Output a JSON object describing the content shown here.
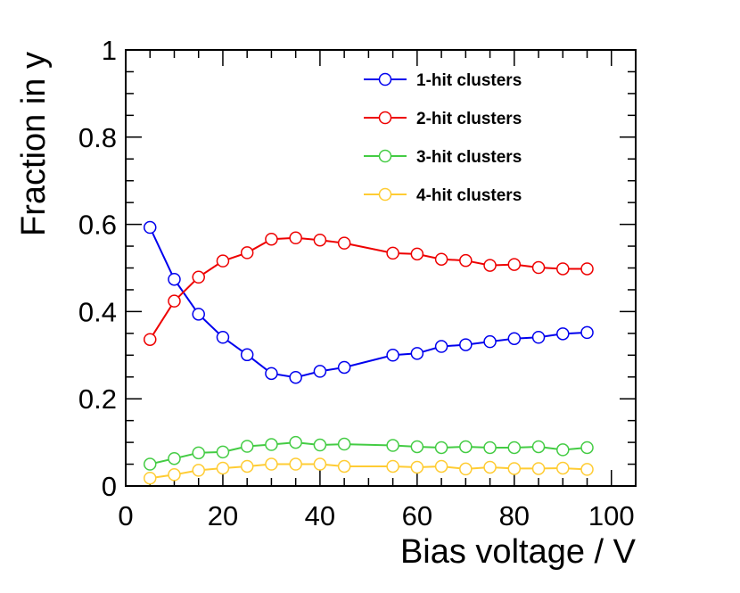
{
  "chart_data": {
    "type": "line",
    "title": "",
    "xlabel": "Bias voltage / V",
    "ylabel": "Fraction in y",
    "xlim": [
      0,
      105
    ],
    "ylim": [
      0,
      1
    ],
    "x_ticks": [
      0,
      20,
      40,
      60,
      80,
      100
    ],
    "y_ticks": [
      0,
      0.2,
      0.4,
      0.6,
      0.8,
      1
    ],
    "x_tick_labels": [
      "0",
      "20",
      "40",
      "60",
      "80",
      "100"
    ],
    "y_tick_labels": [
      "0",
      "0.2",
      "0.4",
      "0.6",
      "0.8",
      "1"
    ],
    "legend_position": "top-right",
    "series": [
      {
        "name": "1-hit clusters",
        "color": "#0000ee",
        "x": [
          5,
          10,
          15,
          20,
          25,
          30,
          35,
          40,
          45,
          55,
          60,
          65,
          70,
          75,
          80,
          85,
          90,
          95
        ],
        "values": [
          0.593,
          0.474,
          0.394,
          0.341,
          0.301,
          0.258,
          0.249,
          0.263,
          0.272,
          0.3,
          0.304,
          0.32,
          0.324,
          0.331,
          0.338,
          0.341,
          0.349,
          0.352
        ]
      },
      {
        "name": "2-hit clusters",
        "color": "#ee0000",
        "x": [
          5,
          10,
          15,
          20,
          25,
          30,
          35,
          40,
          45,
          55,
          60,
          65,
          70,
          75,
          80,
          85,
          90,
          95
        ],
        "values": [
          0.336,
          0.424,
          0.479,
          0.516,
          0.535,
          0.566,
          0.569,
          0.564,
          0.557,
          0.534,
          0.532,
          0.52,
          0.517,
          0.506,
          0.508,
          0.501,
          0.498,
          0.498
        ]
      },
      {
        "name": "3-hit clusters",
        "color": "#44cc44",
        "x": [
          5,
          10,
          15,
          20,
          25,
          30,
          35,
          40,
          45,
          55,
          60,
          65,
          70,
          75,
          80,
          85,
          90,
          95
        ],
        "values": [
          0.05,
          0.063,
          0.076,
          0.078,
          0.091,
          0.095,
          0.1,
          0.094,
          0.096,
          0.093,
          0.09,
          0.088,
          0.09,
          0.088,
          0.088,
          0.09,
          0.083,
          0.088
        ]
      },
      {
        "name": "4-hit clusters",
        "color": "#ffcc33",
        "x": [
          5,
          10,
          15,
          20,
          25,
          30,
          35,
          40,
          45,
          55,
          60,
          65,
          70,
          75,
          80,
          85,
          90,
          95
        ],
        "values": [
          0.018,
          0.026,
          0.036,
          0.041,
          0.045,
          0.05,
          0.05,
          0.05,
          0.045,
          0.045,
          0.043,
          0.045,
          0.039,
          0.043,
          0.04,
          0.04,
          0.041,
          0.038
        ]
      }
    ]
  }
}
